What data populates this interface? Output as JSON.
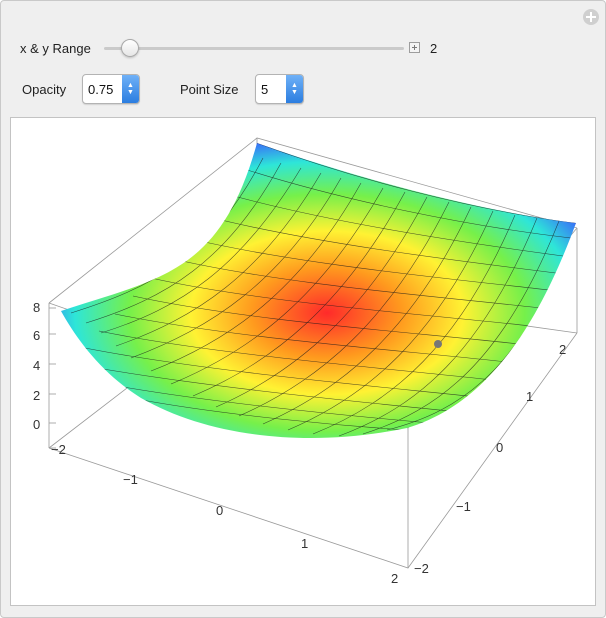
{
  "controls": {
    "range_label": "x & y Range",
    "range_value": "2",
    "opacity_label": "Opacity",
    "opacity_value": "0.75",
    "point_size_label": "Point Size",
    "point_size_value": "5"
  },
  "plot": {
    "z_ticks": [
      "0",
      "2",
      "4",
      "6",
      "8"
    ],
    "x_ticks": [
      "−2",
      "−1",
      "0",
      "1",
      "2"
    ],
    "y_ticks": [
      "−2",
      "−1",
      "0",
      "1",
      "2"
    ]
  }
}
